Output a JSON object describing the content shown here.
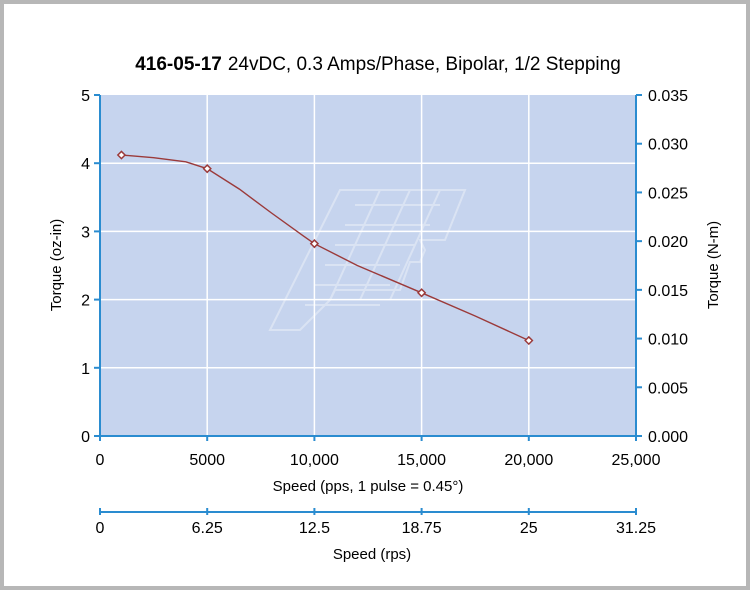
{
  "chart_data": {
    "type": "line",
    "title_bold": "416-05-17",
    "title_rest": "24vDC, 0.3 Amps/Phase, Bipolar, 1/2 Stepping",
    "xlabel": "Speed (pps, 1 pulse = 0.45°)",
    "ylabel_left": "Torque (oz-in)",
    "ylabel_right": "Torque (N-m)",
    "x2label": "Speed (rps)",
    "xlim": [
      0,
      25000
    ],
    "ylim_left": [
      0,
      5
    ],
    "ylim_right": [
      0,
      0.035
    ],
    "x_ticks": [
      "0",
      "5000",
      "10,000",
      "15,000",
      "20,000",
      "25,000"
    ],
    "x_tick_values": [
      0,
      5000,
      10000,
      15000,
      20000,
      25000
    ],
    "y_ticks_left": [
      "0",
      "1",
      "2",
      "3",
      "4",
      "5"
    ],
    "y_ticks_right": [
      "0.000",
      "0.005",
      "0.010",
      "0.015",
      "0.020",
      "0.025",
      "0.030",
      "0.035"
    ],
    "x2_ticks": [
      "0",
      "6.25",
      "12.5",
      "18.75",
      "25",
      "31.25"
    ],
    "grid": true,
    "series": [
      {
        "markers": [
          {
            "x": 1000,
            "y": 4.12
          },
          {
            "x": 5000,
            "y": 3.92
          },
          {
            "x": 10000,
            "y": 2.82
          },
          {
            "x": 15000,
            "y": 2.1
          },
          {
            "x": 20000,
            "y": 1.4
          }
        ],
        "curve": [
          {
            "x": 1000,
            "y": 4.12
          },
          {
            "x": 2500,
            "y": 4.08
          },
          {
            "x": 4000,
            "y": 4.02
          },
          {
            "x": 5000,
            "y": 3.92
          },
          {
            "x": 6500,
            "y": 3.62
          },
          {
            "x": 8000,
            "y": 3.27
          },
          {
            "x": 9500,
            "y": 2.93
          },
          {
            "x": 10000,
            "y": 2.82
          },
          {
            "x": 12000,
            "y": 2.5
          },
          {
            "x": 15000,
            "y": 2.1
          },
          {
            "x": 17500,
            "y": 1.76
          },
          {
            "x": 20000,
            "y": 1.4
          }
        ]
      }
    ],
    "colors": {
      "plot_background": "#c6d4ee",
      "axis": "#2a8cd0",
      "line": "#9b3a3a",
      "grid": "#ffffff"
    }
  }
}
